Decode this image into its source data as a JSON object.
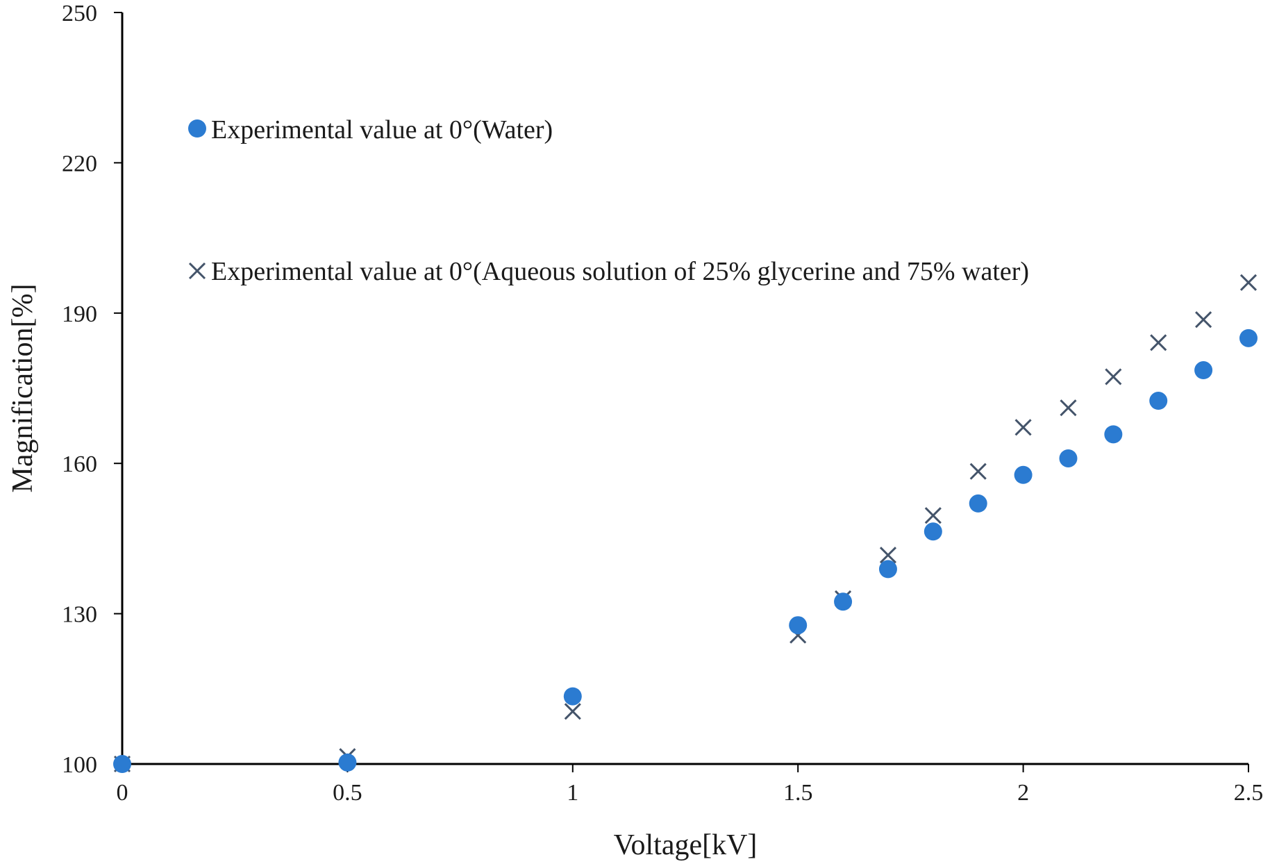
{
  "chart_data": {
    "type": "scatter",
    "title": "",
    "xlabel": "Voltage[kV]",
    "ylabel": "Magnification[%]",
    "xlim": [
      0,
      2.5
    ],
    "ylim": [
      100,
      250
    ],
    "xticks": [
      0,
      0.5,
      1,
      1.5,
      2,
      2.5
    ],
    "yticks": [
      100,
      130,
      160,
      190,
      220,
      250
    ],
    "xtick_labels": [
      "0",
      "0.5",
      "1",
      "1.5",
      "2",
      "2.5"
    ],
    "ytick_labels": [
      "100",
      "130",
      "160",
      "190",
      "220",
      "250"
    ],
    "grid": false,
    "legend_position": "upper-left inside plot",
    "series": [
      {
        "name": "Experimental value at 0°(Water)",
        "marker": "circle",
        "color": "#2b7bd1",
        "x": [
          0,
          0.5,
          1,
          1.5,
          1.6,
          1.7,
          1.8,
          1.9,
          2.0,
          2.1,
          2.2,
          2.3,
          2.4,
          2.5
        ],
        "y": [
          100,
          100.3,
          113.5,
          127.7,
          132.4,
          138.9,
          146.4,
          152.0,
          157.7,
          161.0,
          165.8,
          172.5,
          178.6,
          185.0
        ]
      },
      {
        "name": "Experimental value at 0°(Aqueous solution of 25% glycerine and 75% water)",
        "marker": "x",
        "color": "#44546a",
        "x": [
          0,
          0.5,
          1,
          1.5,
          1.6,
          1.7,
          1.8,
          1.9,
          2.0,
          2.1,
          2.2,
          2.3,
          2.4,
          2.5
        ],
        "y": [
          100,
          101.5,
          110.5,
          125.7,
          133.0,
          141.7,
          149.6,
          158.4,
          167.2,
          171.1,
          177.3,
          184.1,
          188.7,
          196.1
        ]
      }
    ]
  }
}
